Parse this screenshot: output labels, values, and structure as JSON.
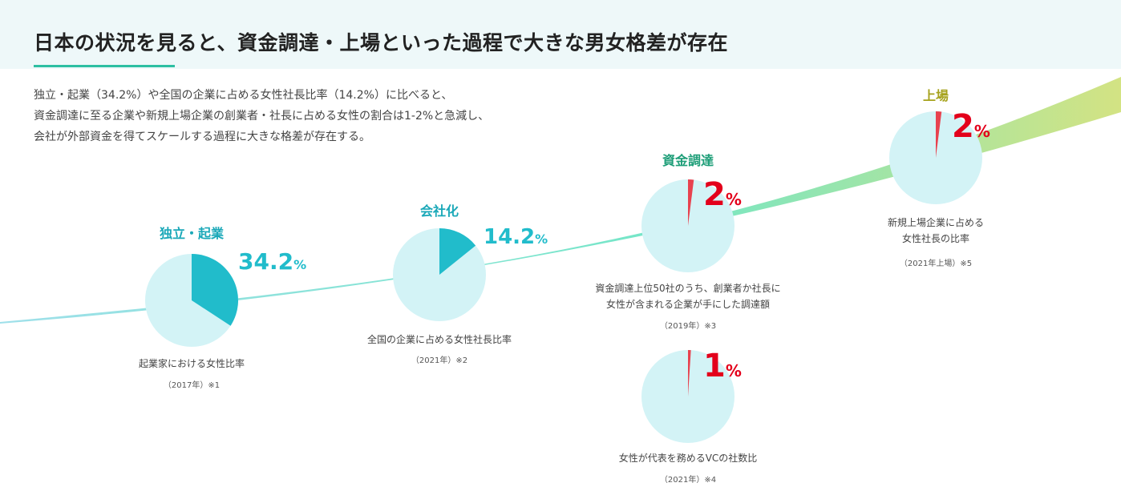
{
  "title": "日本の状況を見ると、資金調達・上場といった過程で大きな男女格差が存在",
  "intro": [
    "独立・起業（34.2%）や全国の企業に占める女性社長比率（14.2%）に比べると、",
    "資金調達に至る企業や新規上場企業の創業者・社長に占める女性の割合は1-2%と急減し、",
    "会社が外部資金を得てスケールする過程に大きな格差が存在する。"
  ],
  "colors": {
    "teal": "#21bccb",
    "pie_bg": "#d3f3f6",
    "red": "#e3001b",
    "red_slice": "#e8424f",
    "green_label": "#1e9e78",
    "olive_label": "#a6a21c",
    "band_start": "#9fe0ea",
    "band_mid": "#74e6c6",
    "band_end": "#d3e383"
  },
  "chart_data": {
    "type": "pie",
    "series": [
      {
        "name": "独立・起業",
        "value": 34.2,
        "value_text": "34.2",
        "unit": "%",
        "caption": [
          "起業家における女性比率"
        ],
        "note": "（2017年）※1"
      },
      {
        "name": "会社化",
        "value": 14.2,
        "value_text": "14.2",
        "unit": "%",
        "caption": [
          "全国の企業に占める女性社長比率"
        ],
        "note": "（2021年）※2"
      },
      {
        "name": "資金調達",
        "value": 2,
        "value_text": "2",
        "unit": "%",
        "caption": [
          "資金調達上位50社のうち、創業者か社長に",
          "女性が含まれる企業が手にした調達額"
        ],
        "note": "（2019年）※3"
      },
      {
        "name": "",
        "value": 1,
        "value_text": "1",
        "unit": "%",
        "caption": [
          "女性が代表を務めるVCの社数比"
        ],
        "note": "（2021年）※4"
      },
      {
        "name": "上場",
        "value": 2,
        "value_text": "2",
        "unit": "%",
        "caption": [
          "新規上場企業に占める",
          "女性社長の比率"
        ],
        "note": "（2021年上場）※5"
      }
    ]
  }
}
